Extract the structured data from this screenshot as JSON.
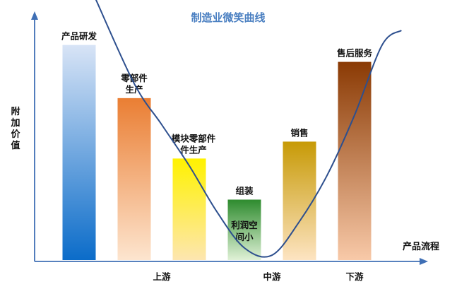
{
  "chart_data": {
    "type": "bar",
    "title": "制造业微笑曲线",
    "ylabel": "附加价值",
    "xlabel": "产品流程",
    "ylim": [
      0,
      10
    ],
    "categories": [
      "产品研发",
      "零部件生产",
      "模块零部件生产",
      "组装",
      "销售",
      "售后服务"
    ],
    "category_lines": [
      [
        "产品研发"
      ],
      [
        "零部件",
        "生产"
      ],
      [
        "模块零部件",
        "件生产"
      ],
      [
        "组装"
      ],
      [
        "销售"
      ],
      [
        "售后服务"
      ]
    ],
    "values": [
      8.9,
      6.7,
      4.2,
      2.5,
      4.9,
      8.2
    ],
    "bar_colors": [
      [
        "#d8e4f6",
        "#0b6cc9"
      ],
      [
        "#ea7e33",
        "#fde5cf"
      ],
      [
        "#fff200",
        "#fde6b0"
      ],
      [
        "#2e8b2e",
        "#dff1d6"
      ],
      [
        "#c79a06",
        "#fde4c2"
      ],
      [
        "#8a3a04",
        "#f8c9a8"
      ]
    ],
    "stages": [
      {
        "label": "上游",
        "x": 1.5
      },
      {
        "label": "中游",
        "x": 3.5
      },
      {
        "label": "下游",
        "x": 5.0
      }
    ],
    "annotation": {
      "lines": [
        "利润空",
        "间小"
      ],
      "category_index": 3
    },
    "curve": {
      "name": "微笑曲线",
      "color": "#2d4f8e",
      "points": [
        [
          0.3,
          10.8
        ],
        [
          1.0,
          7.3
        ],
        [
          1.5,
          5.6
        ],
        [
          2.0,
          3.9
        ],
        [
          2.5,
          2.0
        ],
        [
          3.0,
          0.5
        ],
        [
          3.5,
          0.2
        ],
        [
          4.0,
          1.6
        ],
        [
          4.5,
          3.5
        ],
        [
          5.0,
          6.0
        ],
        [
          5.5,
          8.9
        ],
        [
          5.85,
          9.5
        ]
      ]
    }
  }
}
